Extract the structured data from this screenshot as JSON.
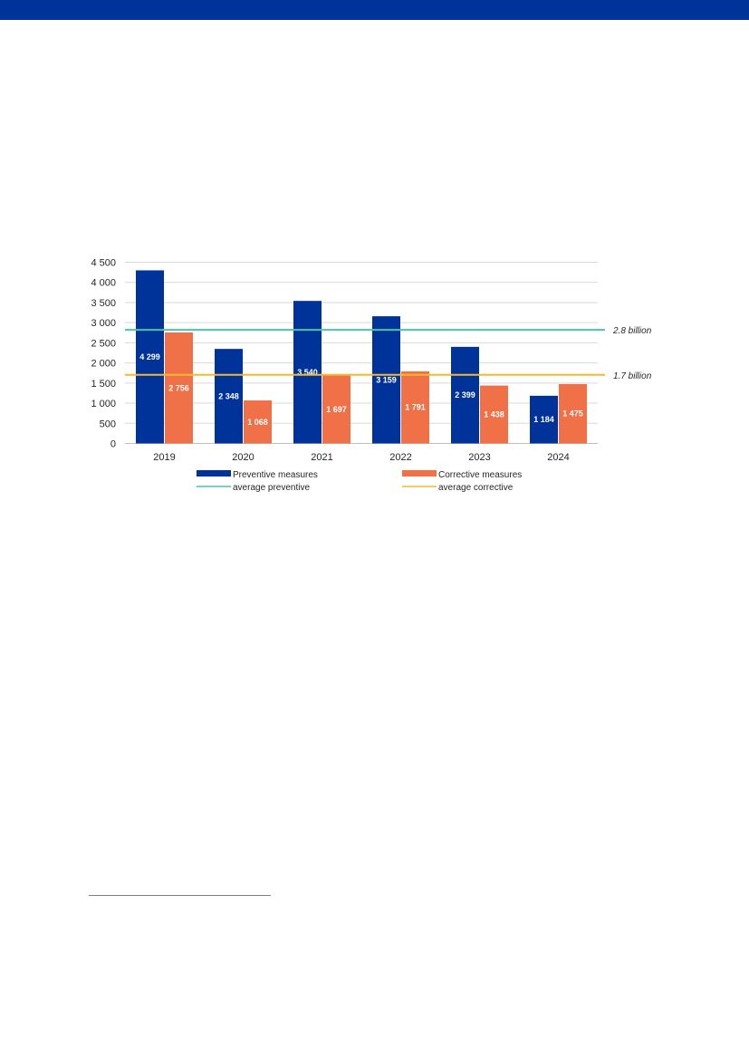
{
  "chart_data": {
    "type": "bar",
    "categories": [
      "2019",
      "2020",
      "2021",
      "2022",
      "2023",
      "2024"
    ],
    "series": [
      {
        "name": "Preventive measures",
        "values": [
          4299,
          2348,
          3540,
          3159,
          2399,
          1184
        ],
        "labels": [
          "4 299",
          "2 348",
          "3 540",
          "3 159",
          "2 399",
          "1 184"
        ],
        "color": "#003399"
      },
      {
        "name": "Corrective measures",
        "values": [
          2756,
          1068,
          1697,
          1791,
          1438,
          1475
        ],
        "labels": [
          "2 756",
          "1 068",
          "1 697",
          "1 791",
          "1 438",
          "1 475"
        ],
        "color": "#F07048"
      }
    ],
    "reference_lines": [
      {
        "name": "average preventive",
        "value": 2821,
        "label": "2.8 billion",
        "color": "#4EC3A9"
      },
      {
        "name": "average corrective",
        "value": 1704,
        "label": "1.7 billion",
        "color": "#F5B82E"
      }
    ],
    "ylim": [
      0,
      4500
    ],
    "yticks": [
      0,
      500,
      1000,
      1500,
      2000,
      2500,
      3000,
      3500,
      4000,
      4500
    ],
    "ytick_labels": [
      "0",
      "500",
      "1 000",
      "1 500",
      "2 000",
      "2 500",
      "3 000",
      "3 500",
      "4 000",
      "4 500"
    ],
    "grid": true,
    "legend_position": "bottom",
    "title": "",
    "xlabel": "",
    "ylabel": ""
  },
  "colors": {
    "header_bar": "#003399",
    "grid": "#d9d9d9",
    "axis": "#bfbfbf"
  }
}
